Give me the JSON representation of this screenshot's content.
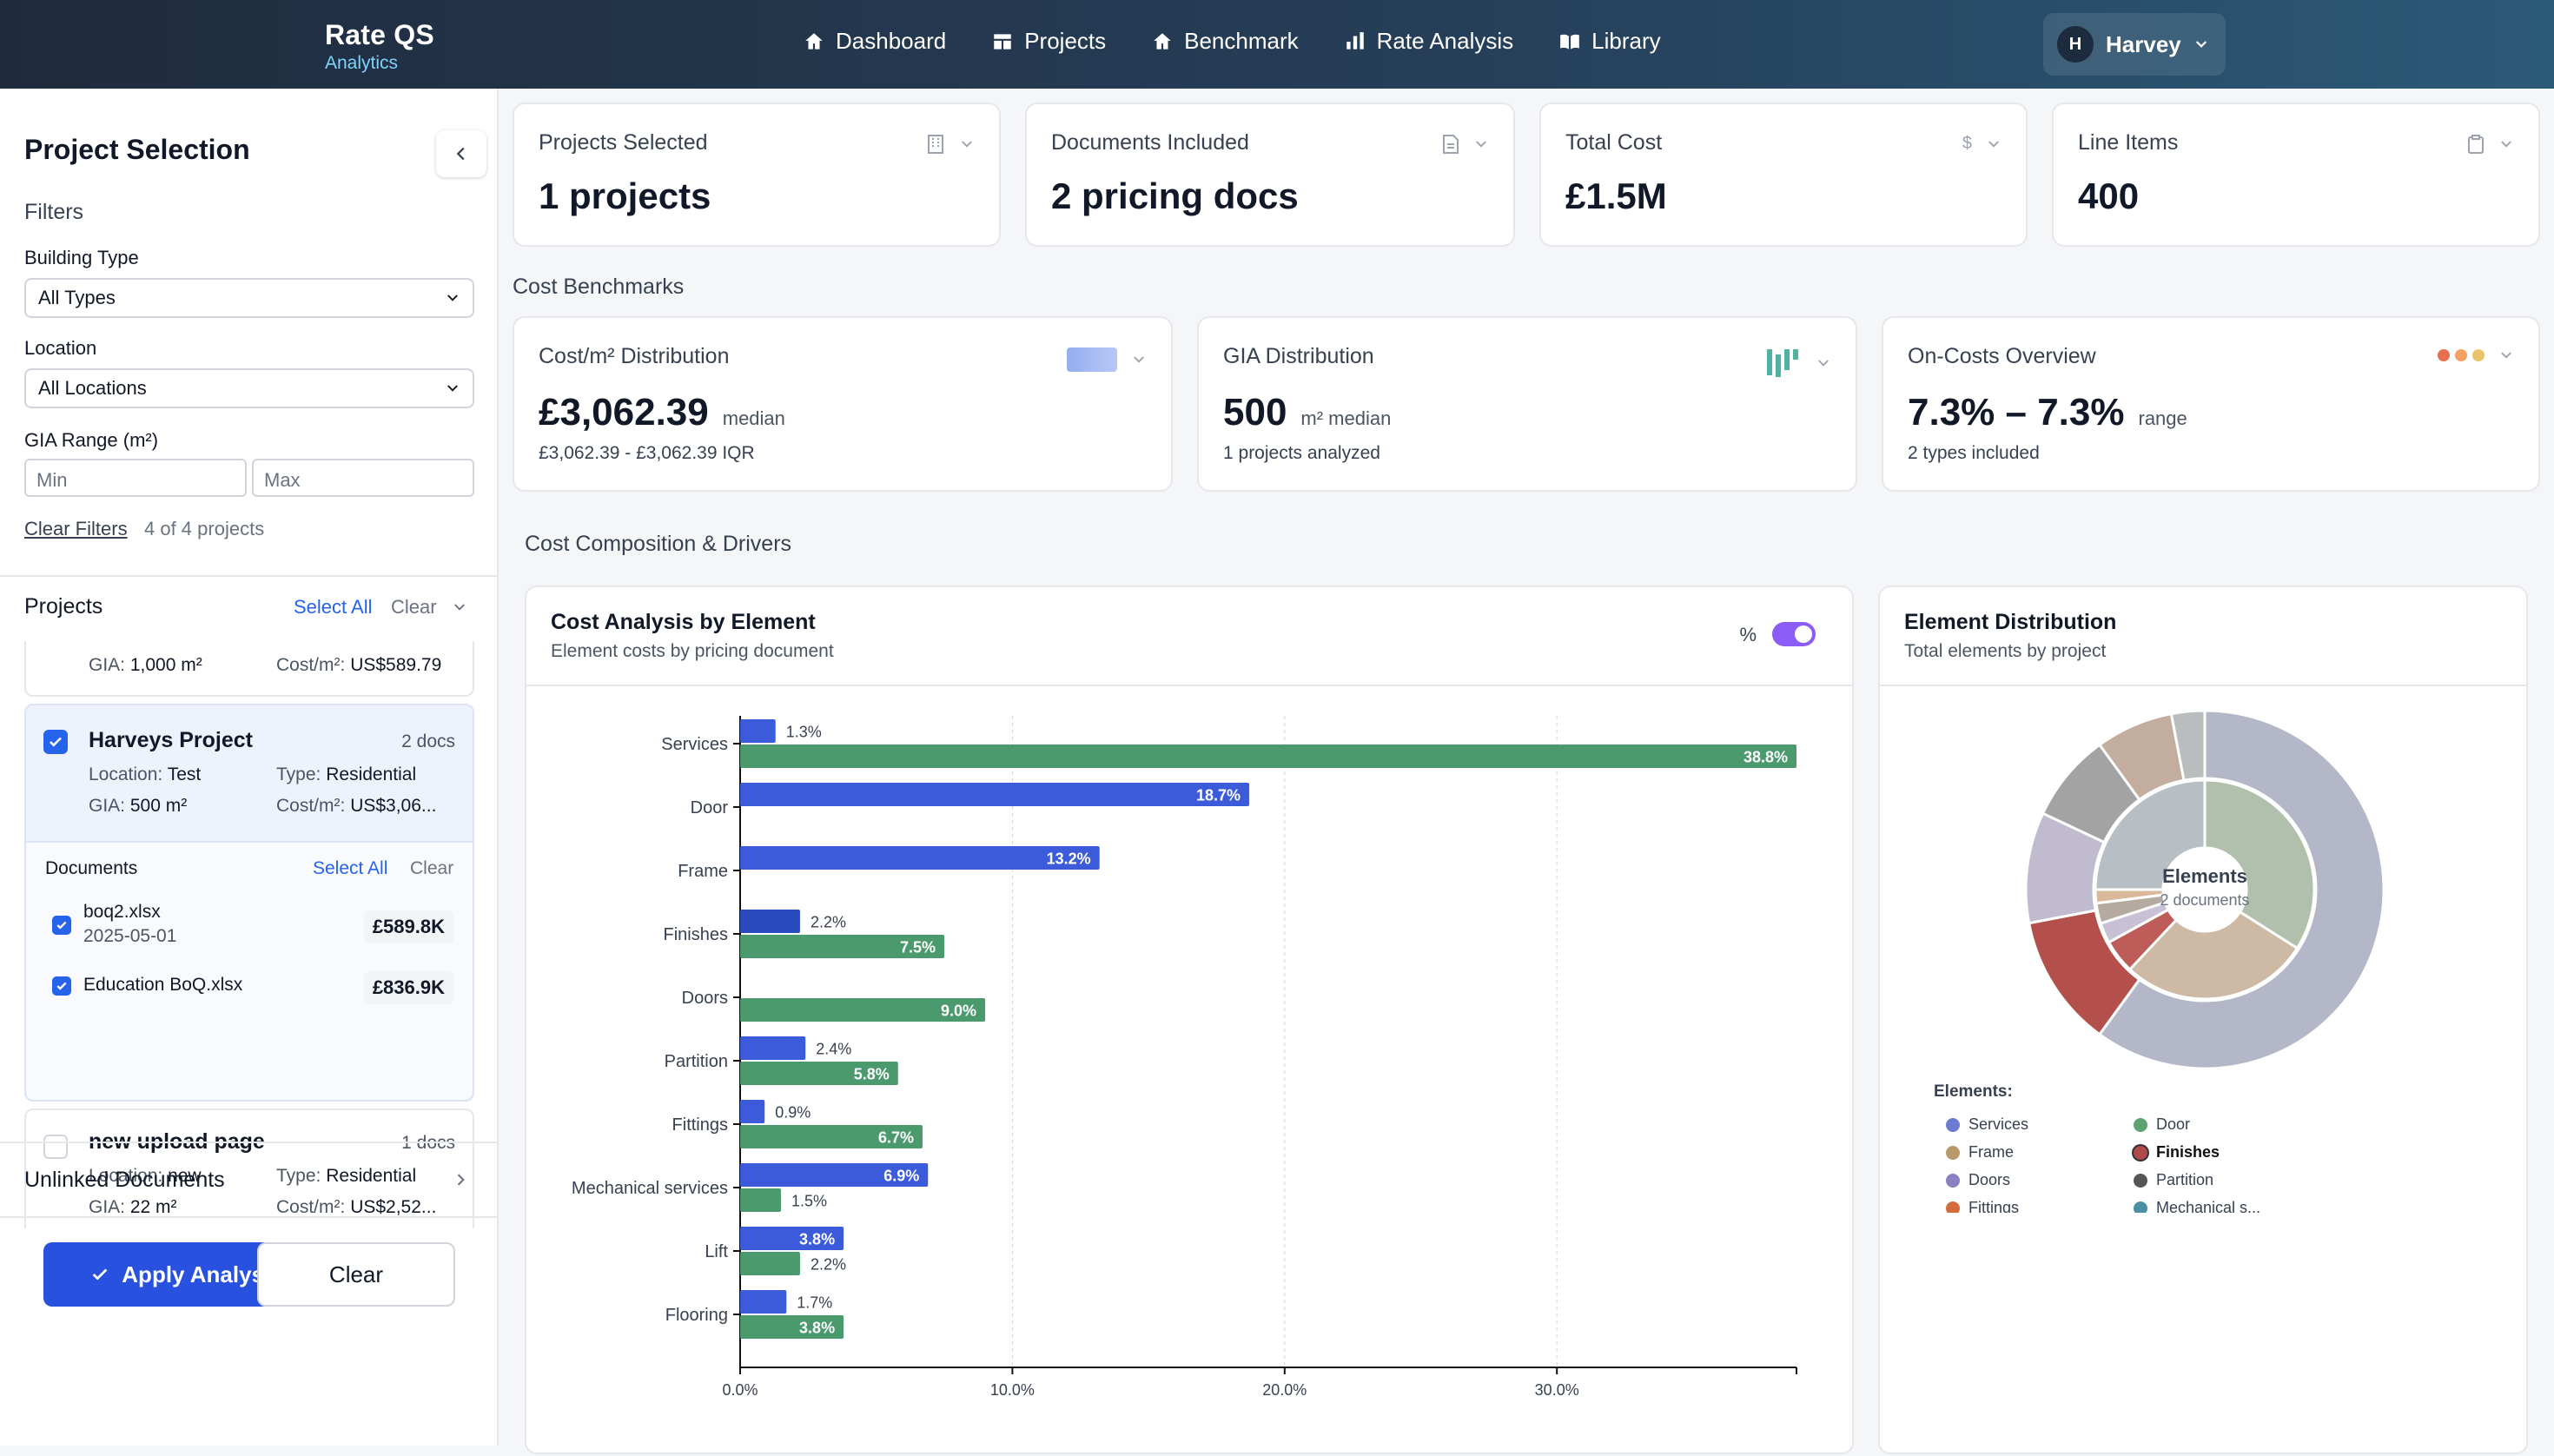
{
  "app": {
    "title": "Rate QS",
    "subtitle": "Analytics"
  },
  "nav": [
    {
      "label": "Dashboard",
      "icon": "home-icon"
    },
    {
      "label": "Projects",
      "icon": "projects-icon"
    },
    {
      "label": "Benchmark",
      "icon": "home-icon"
    },
    {
      "label": "Rate Analysis",
      "icon": "bar-chart-icon"
    },
    {
      "label": "Library",
      "icon": "book-icon"
    }
  ],
  "user": {
    "initial": "H",
    "name": "Harvey"
  },
  "sidebar": {
    "title": "Project Selection",
    "filters_label": "Filters",
    "building_type": {
      "label": "Building Type",
      "value": "All Types"
    },
    "location": {
      "label": "Location",
      "value": "All Locations"
    },
    "gia": {
      "label": "GIA Range (m²)",
      "min_placeholder": "Min",
      "max_placeholder": "Max"
    },
    "clear_filters": "Clear Filters",
    "count": "4 of 4 projects",
    "projects_label": "Projects",
    "select_all": "Select All",
    "clear": "Clear",
    "partial_card": {
      "gia_label": "GIA:",
      "gia": "1,000 m²",
      "cost_label": "Cost/m²:",
      "cost": "US$589.79"
    },
    "project1": {
      "name": "Harveys Project",
      "docs": "2 docs",
      "loc_label": "Location:",
      "loc": "Test",
      "type_label": "Type:",
      "type": "Residential",
      "gia_label": "GIA:",
      "gia": "500 m²",
      "cost_label": "Cost/m²:",
      "cost": "US$3,06..."
    },
    "documents": {
      "label": "Documents",
      "select_all": "Select All",
      "clear": "Clear",
      "items": [
        {
          "name": "boq2.xlsx",
          "date": "2025-05-01",
          "amount": "£589.8K"
        },
        {
          "name": "Education BoQ.xlsx",
          "amount": "£836.9K"
        }
      ]
    },
    "project2": {
      "name": "new upload page",
      "docs": "1 docs",
      "loc_label": "Location:",
      "loc": "new",
      "type_label": "Type:",
      "type": "Residential",
      "gia_label": "GIA:",
      "gia": "22 m²",
      "cost_label": "Cost/m²:",
      "cost": "US$2,52..."
    },
    "unlinked": "Unlinked Documents",
    "apply": "Apply Analysis",
    "clear_btn": "Clear"
  },
  "stats": [
    {
      "label": "Projects Selected",
      "value": "1 projects"
    },
    {
      "label": "Documents Included",
      "value": "2 pricing docs"
    },
    {
      "label": "Total Cost",
      "value": "£1.5M",
      "icon_text": "$"
    },
    {
      "label": "Line Items",
      "value": "400"
    }
  ],
  "benchmarks_title": "Cost Benchmarks",
  "benchmarks": [
    {
      "label": "Cost/m² Distribution",
      "value": "£3,062.39",
      "unit": "median",
      "sub": "£3,062.39 - £3,062.39 IQR"
    },
    {
      "label": "GIA Distribution",
      "value": "500",
      "unit": "m² median",
      "sub": "1 projects analyzed"
    },
    {
      "label": "On-Costs Overview",
      "value": "7.3% – 7.3%",
      "unit": "range",
      "sub": "2 types included"
    }
  ],
  "composition_title": "Cost Composition & Drivers",
  "cost_panel": {
    "title": "Cost Analysis by Element",
    "subtitle": "Element costs by pricing document",
    "toggle_label": "%"
  },
  "dist_panel": {
    "title": "Element Distribution",
    "subtitle": "Total elements by project",
    "center_title": "Elements",
    "center_sub": "2 documents"
  },
  "chart_data": [
    {
      "type": "bar",
      "orientation": "horizontal",
      "title": "Cost Analysis by Element",
      "xlim": [
        0,
        38.8
      ],
      "xticks": [
        "0.0%",
        "10.0%",
        "20.0%",
        "30.0%"
      ],
      "categories": [
        "Services",
        "Door",
        "Frame",
        "Finishes",
        "Doors",
        "Partition",
        "Fittings",
        "Mechanical services",
        "Lift",
        "Flooring"
      ],
      "series": [
        {
          "name": "boq2.xlsx",
          "color": "#3b5bdb",
          "values": [
            1.3,
            18.7,
            13.2,
            2.2,
            null,
            2.4,
            0.9,
            6.9,
            3.8,
            1.7
          ]
        },
        {
          "name": "Education BoQ.xlsx",
          "color": "#4a9a6e",
          "values": [
            38.8,
            null,
            null,
            7.5,
            9.0,
            5.8,
            6.7,
            1.5,
            2.2,
            3.8
          ]
        }
      ]
    },
    {
      "type": "pie",
      "title": "Element Distribution",
      "legend_title": "Elements:",
      "legend": [
        {
          "name": "Services",
          "color": "#6a7bd0"
        },
        {
          "name": "Door",
          "color": "#5fa470"
        },
        {
          "name": "Frame",
          "color": "#b89a6a"
        },
        {
          "name": "Finishes",
          "color": "#b04a48"
        },
        {
          "name": "Doors",
          "color": "#8a7fbf"
        },
        {
          "name": "Partition",
          "color": "#555555"
        },
        {
          "name": "Fittings",
          "color": "#d36b3a"
        },
        {
          "name": "Mechanical s...",
          "color": "#4a90a4"
        }
      ],
      "outer": [
        {
          "value": 60,
          "color": "#b3b7c8"
        },
        {
          "value": 12,
          "color": "#b3504c"
        },
        {
          "value": 10,
          "color": "#c1bbcf"
        },
        {
          "value": 8,
          "color": "#a3a3a3"
        },
        {
          "value": 7,
          "color": "#c2ad9f"
        },
        {
          "value": 3,
          "color": "#b9bdbd"
        }
      ],
      "inner": [
        {
          "value": 34,
          "color": "#b0c0ac"
        },
        {
          "value": 28,
          "color": "#cdb9a4"
        },
        {
          "value": 5,
          "color": "#bd5c58"
        },
        {
          "value": 3,
          "color": "#c8c0d4"
        },
        {
          "value": 3,
          "color": "#b5aaa0"
        },
        {
          "value": 2,
          "color": "#d9b89c"
        },
        {
          "value": 25,
          "color": "#b8bfc4"
        }
      ]
    }
  ]
}
